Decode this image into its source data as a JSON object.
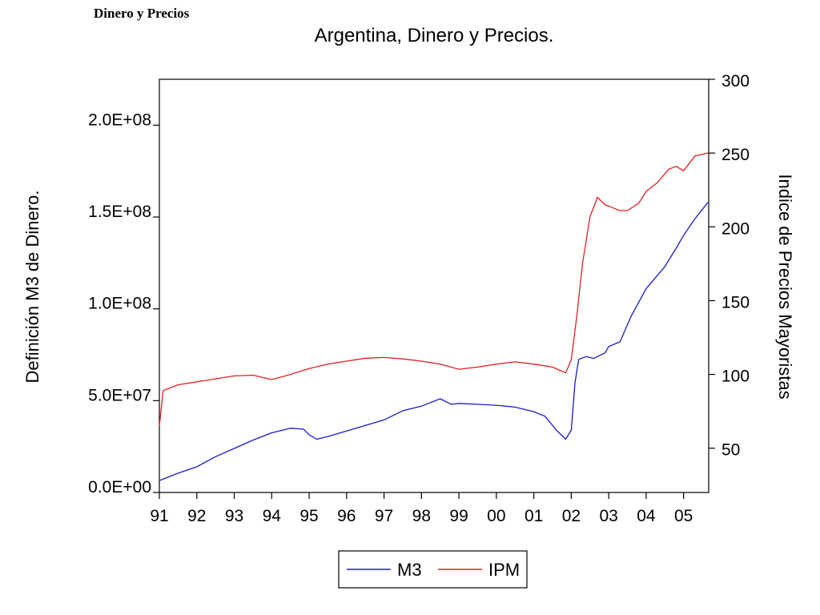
{
  "header": {
    "label": "Dinero y Precios"
  },
  "chart_data": {
    "type": "line",
    "title": "Argentina, Dinero y Precios.",
    "y_left": {
      "label": "Definición M3 de Dinero.",
      "range": [
        0,
        225000000
      ],
      "ticks": [
        {
          "value": 0,
          "label": "0.0E+00"
        },
        {
          "value": 50000000,
          "label": "5.0E+07"
        },
        {
          "value": 100000000,
          "label": "1.0E+08"
        },
        {
          "value": 150000000,
          "label": "1.5E+08"
        },
        {
          "value": 200000000,
          "label": "2.0E+08"
        }
      ]
    },
    "y_right": {
      "label": "Indice de Precios Mayoristas",
      "range": [
        20,
        300
      ],
      "ticks": [
        {
          "value": 50,
          "label": "50"
        },
        {
          "value": 100,
          "label": "100"
        },
        {
          "value": 150,
          "label": "150"
        },
        {
          "value": 200,
          "label": "200"
        },
        {
          "value": 250,
          "label": "250"
        },
        {
          "value": 300,
          "label": "300"
        }
      ]
    },
    "x_axis": {
      "range": [
        1991.0,
        2005.67
      ],
      "ticks": [
        {
          "value": 1991,
          "label": "91"
        },
        {
          "value": 1992,
          "label": "92"
        },
        {
          "value": 1993,
          "label": "93"
        },
        {
          "value": 1994,
          "label": "94"
        },
        {
          "value": 1995,
          "label": "95"
        },
        {
          "value": 1996,
          "label": "96"
        },
        {
          "value": 1997,
          "label": "97"
        },
        {
          "value": 1998,
          "label": "98"
        },
        {
          "value": 1999,
          "label": "99"
        },
        {
          "value": 2000,
          "label": "00"
        },
        {
          "value": 2001,
          "label": "01"
        },
        {
          "value": 2002,
          "label": "02"
        },
        {
          "value": 2003,
          "label": "03"
        },
        {
          "value": 2004,
          "label": "04"
        },
        {
          "value": 2005,
          "label": "05"
        }
      ]
    },
    "legend": {
      "placement": "bottom-center"
    },
    "series": [
      {
        "name": "M3",
        "axis": "left",
        "color": "#1a1acc",
        "points": [
          [
            1991.0,
            6500000
          ],
          [
            1991.5,
            10500000
          ],
          [
            1992.0,
            14000000
          ],
          [
            1992.5,
            19500000
          ],
          [
            1993.0,
            24000000
          ],
          [
            1993.5,
            28500000
          ],
          [
            1994.0,
            32500000
          ],
          [
            1994.5,
            35000000
          ],
          [
            1994.85,
            34500000
          ],
          [
            1995.0,
            31500000
          ],
          [
            1995.2,
            29000000
          ],
          [
            1995.5,
            30500000
          ],
          [
            1996.0,
            33500000
          ],
          [
            1996.5,
            36500000
          ],
          [
            1997.0,
            39500000
          ],
          [
            1997.5,
            44500000
          ],
          [
            1998.0,
            47000000
          ],
          [
            1998.5,
            51000000
          ],
          [
            1998.8,
            48000000
          ],
          [
            1999.0,
            48500000
          ],
          [
            1999.5,
            48000000
          ],
          [
            2000.0,
            47500000
          ],
          [
            2000.5,
            46500000
          ],
          [
            2001.0,
            44000000
          ],
          [
            2001.3,
            41500000
          ],
          [
            2001.6,
            34000000
          ],
          [
            2001.85,
            29000000
          ],
          [
            2002.0,
            34000000
          ],
          [
            2002.1,
            60000000
          ],
          [
            2002.2,
            72500000
          ],
          [
            2002.4,
            74000000
          ],
          [
            2002.6,
            73000000
          ],
          [
            2002.9,
            76000000
          ],
          [
            2003.0,
            79500000
          ],
          [
            2003.3,
            82000000
          ],
          [
            2003.6,
            96000000
          ],
          [
            2004.0,
            111000000
          ],
          [
            2004.5,
            123000000
          ],
          [
            2004.8,
            133000000
          ],
          [
            2005.0,
            140000000
          ],
          [
            2005.3,
            149000000
          ],
          [
            2005.65,
            158000000
          ]
        ]
      },
      {
        "name": "IPM",
        "axis": "right",
        "color": "#dd2020",
        "points": [
          [
            1991.0,
            65
          ],
          [
            1991.1,
            89
          ],
          [
            1991.5,
            93
          ],
          [
            1992.0,
            95
          ],
          [
            1992.5,
            97
          ],
          [
            1993.0,
            99
          ],
          [
            1993.5,
            99.5
          ],
          [
            1994.0,
            96.5
          ],
          [
            1994.5,
            100
          ],
          [
            1995.0,
            104
          ],
          [
            1995.5,
            107
          ],
          [
            1996.0,
            109
          ],
          [
            1996.5,
            111
          ],
          [
            1997.0,
            111.5
          ],
          [
            1997.5,
            110.5
          ],
          [
            1998.0,
            109
          ],
          [
            1998.5,
            107
          ],
          [
            1999.0,
            103.5
          ],
          [
            1999.5,
            105
          ],
          [
            2000.0,
            107
          ],
          [
            2000.5,
            108.5
          ],
          [
            2001.0,
            107
          ],
          [
            2001.5,
            105
          ],
          [
            2001.85,
            101
          ],
          [
            2002.0,
            110
          ],
          [
            2002.15,
            140
          ],
          [
            2002.3,
            175
          ],
          [
            2002.5,
            207
          ],
          [
            2002.7,
            220
          ],
          [
            2002.9,
            215
          ],
          [
            2003.1,
            213
          ],
          [
            2003.3,
            211
          ],
          [
            2003.5,
            211
          ],
          [
            2003.8,
            216
          ],
          [
            2004.0,
            224
          ],
          [
            2004.3,
            230
          ],
          [
            2004.6,
            239
          ],
          [
            2004.8,
            241
          ],
          [
            2005.0,
            238
          ],
          [
            2005.3,
            248
          ],
          [
            2005.65,
            250
          ]
        ]
      }
    ]
  }
}
